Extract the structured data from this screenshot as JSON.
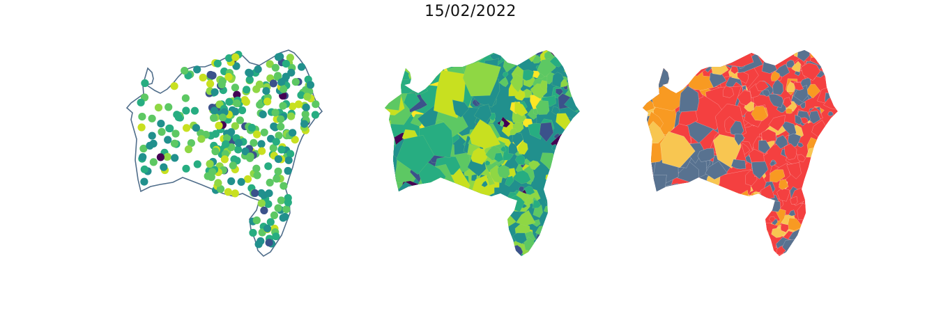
{
  "figure": {
    "title": "15/02/2022"
  },
  "colors": {
    "outline": "#4f6d8a",
    "viridis": [
      "#440154",
      "#3b528b",
      "#21908d",
      "#27ad81",
      "#5dc863",
      "#8fd744",
      "#c8e020",
      "#fde725"
    ],
    "classes": {
      "red": "#f44040",
      "slate": "#587290",
      "yellow": "#f8c651",
      "orange": "#f89a22"
    }
  },
  "panels": [
    {
      "name": "point-map",
      "style": "points"
    },
    {
      "name": "choropleth-viridis",
      "style": "choropleth"
    },
    {
      "name": "choropleth-classes",
      "style": "categorical"
    }
  ]
}
